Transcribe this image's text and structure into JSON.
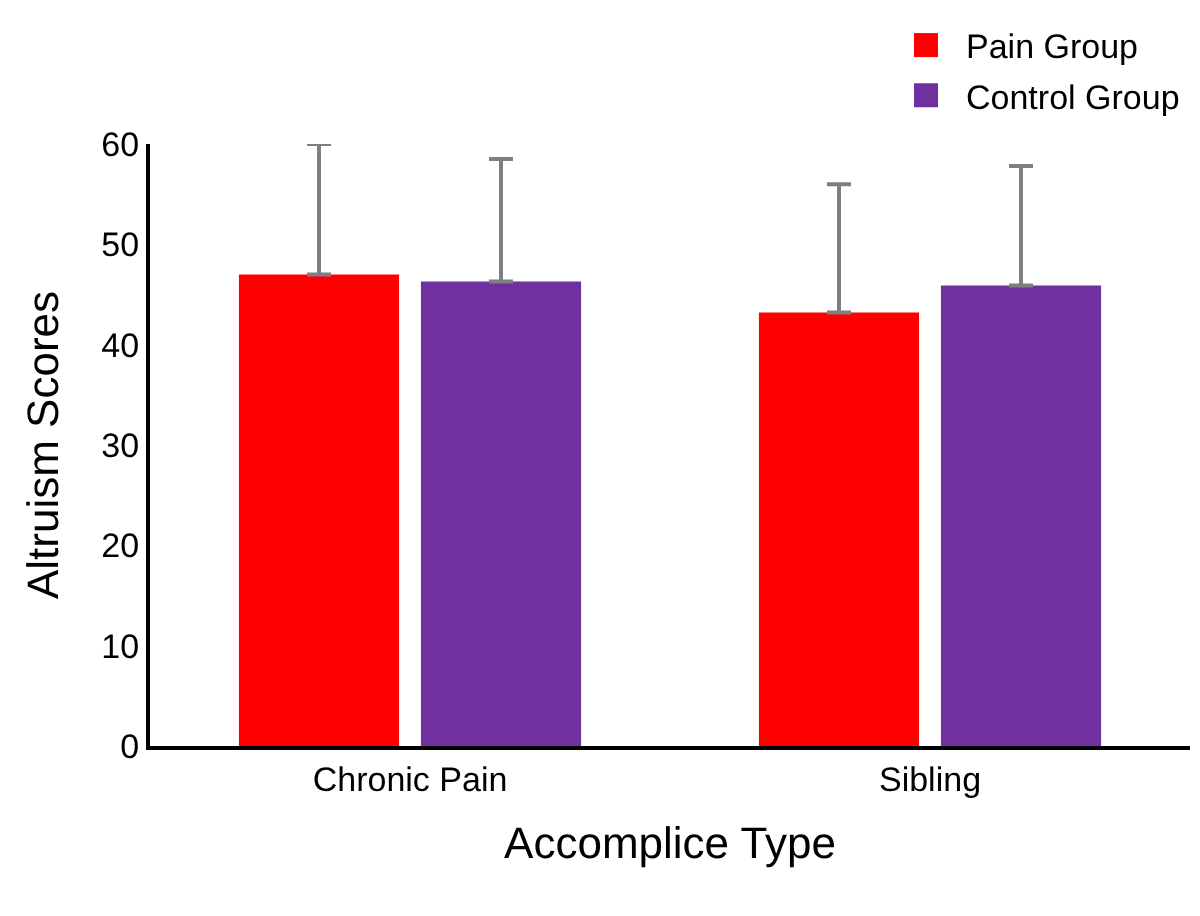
{
  "chart_data": {
    "type": "bar",
    "xlabel": "Accomplice Type",
    "ylabel": "Altruism Scores",
    "categories": [
      "Chronic Pain",
      "Sibling"
    ],
    "series": [
      {
        "name": "Pain Group",
        "color": "#ff0000",
        "values": [
          47.0,
          43.2
        ],
        "errors": [
          [
            47.0,
            60.0
          ],
          [
            43.2,
            56.0
          ]
        ]
      },
      {
        "name": "Control Group",
        "color": "#7030a0",
        "values": [
          46.3,
          45.9
        ],
        "errors": [
          [
            46.3,
            58.5
          ],
          [
            45.9,
            57.8
          ]
        ]
      }
    ],
    "ylim": [
      0,
      60
    ],
    "yticks": [
      0,
      10,
      20,
      30,
      40,
      50,
      60
    ],
    "grid": false,
    "legend": "top right"
  }
}
